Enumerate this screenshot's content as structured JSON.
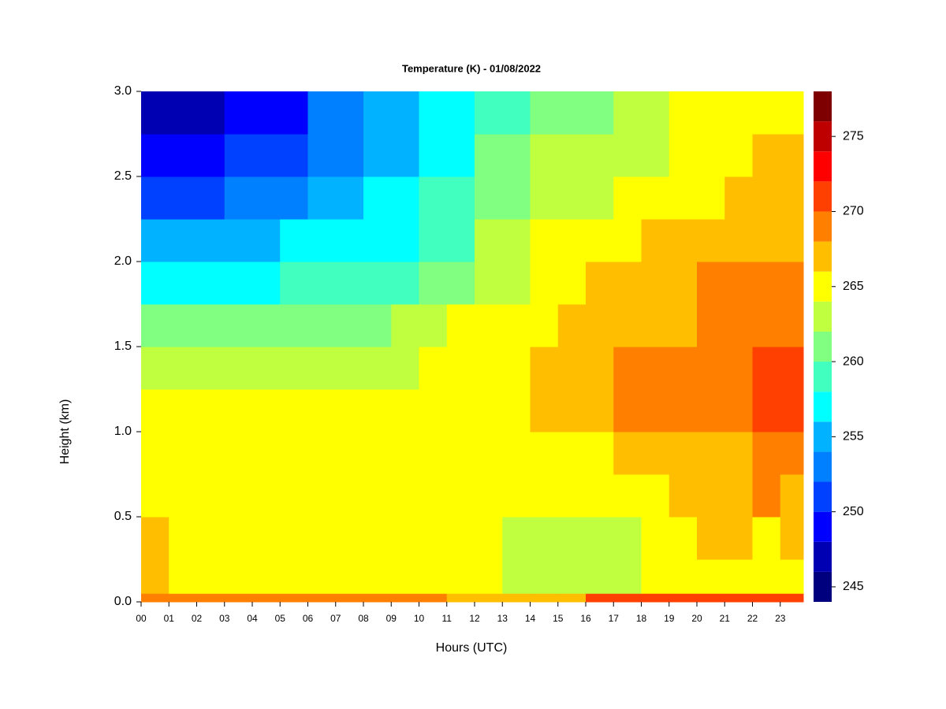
{
  "chart_data": {
    "type": "heatmap",
    "title": "Temperature (K) - 01/08/2022",
    "x_label": "Hours (UTC)",
    "y_label": "Height (km)",
    "xlim": [
      0,
      23.83
    ],
    "ylim": [
      0,
      3
    ],
    "xticks": [
      {
        "value": 0,
        "label": "00"
      },
      {
        "value": 1,
        "label": "01"
      },
      {
        "value": 2,
        "label": "02"
      },
      {
        "value": 3,
        "label": "03"
      },
      {
        "value": 4,
        "label": "04"
      },
      {
        "value": 5,
        "label": "05"
      },
      {
        "value": 6,
        "label": "06"
      },
      {
        "value": 7,
        "label": "07"
      },
      {
        "value": 8,
        "label": "08"
      },
      {
        "value": 9,
        "label": "09"
      },
      {
        "value": 10,
        "label": "10"
      },
      {
        "value": 11,
        "label": "11"
      },
      {
        "value": 12,
        "label": "12"
      },
      {
        "value": 13,
        "label": "13"
      },
      {
        "value": 14,
        "label": "14"
      },
      {
        "value": 15,
        "label": "15"
      },
      {
        "value": 16,
        "label": "16"
      },
      {
        "value": 17,
        "label": "17"
      },
      {
        "value": 18,
        "label": "18"
      },
      {
        "value": 19,
        "label": "19"
      },
      {
        "value": 20,
        "label": "20"
      },
      {
        "value": 21,
        "label": "21"
      },
      {
        "value": 22,
        "label": "22"
      },
      {
        "value": 23,
        "label": "23"
      }
    ],
    "yticks": [
      {
        "value": 0,
        "label": "0.0"
      },
      0.5,
      {
        "value": 1,
        "label": "1.0"
      },
      1.5,
      {
        "value": 2,
        "label": "2.0"
      },
      2.5,
      {
        "value": 3,
        "label": "3.0"
      }
    ],
    "x": [
      0,
      1,
      2,
      3,
      4,
      5,
      6,
      7,
      8,
      9,
      10,
      11,
      12,
      13,
      14,
      15,
      16,
      17,
      18,
      19,
      20,
      21,
      22,
      23
    ],
    "y": [
      0,
      0.05,
      0.25,
      0.5,
      0.75,
      1,
      1.25,
      1.5,
      1.75,
      2,
      2.25,
      2.5,
      2.75
    ],
    "z": [
      [
        268,
        268,
        268,
        268,
        268,
        268,
        268,
        268,
        268,
        268,
        268,
        266,
        266,
        266,
        266,
        266,
        271,
        271,
        271,
        271,
        271,
        271,
        271,
        271
      ],
      [
        266,
        265,
        265,
        265,
        265,
        265,
        265,
        265,
        265,
        265,
        265,
        265,
        265,
        262,
        262,
        262,
        262,
        262,
        264,
        265,
        265,
        265,
        265,
        265
      ],
      [
        267,
        265,
        265,
        265,
        265,
        265,
        265,
        265,
        264,
        264,
        264,
        264,
        264,
        263,
        263,
        263,
        263,
        263,
        265,
        265,
        266,
        266,
        265,
        266
      ],
      [
        265,
        265,
        265,
        265,
        265,
        264,
        264,
        264,
        264,
        264,
        264,
        264,
        265,
        264,
        264,
        264,
        264,
        265,
        265,
        267,
        267,
        267,
        268,
        267
      ],
      [
        265,
        265,
        265,
        265,
        264,
        264,
        264,
        264,
        264,
        264,
        264,
        265,
        265,
        264,
        264,
        264,
        265,
        267,
        267,
        267,
        267,
        267,
        269,
        269
      ],
      [
        264,
        264,
        264,
        264,
        264,
        264,
        264,
        264,
        264,
        264,
        264,
        265,
        265,
        265,
        266,
        266,
        267,
        268,
        268,
        268,
        269,
        269,
        270,
        270
      ],
      [
        263,
        263,
        263,
        263,
        263,
        263,
        263,
        263,
        263,
        263,
        264,
        264,
        265,
        265,
        266,
        267,
        267,
        268,
        268,
        268,
        269,
        269,
        270,
        270
      ],
      [
        260,
        260,
        260,
        260,
        260,
        261,
        261,
        261,
        261,
        262,
        262,
        264,
        264,
        265,
        265,
        266,
        267,
        267,
        267,
        267,
        268,
        268,
        269,
        269
      ],
      [
        257,
        257,
        257,
        257,
        257,
        258,
        258,
        258,
        259,
        259,
        261,
        261,
        263,
        263,
        265,
        265,
        266,
        266,
        267,
        267,
        268,
        268,
        268,
        268
      ],
      [
        254,
        254,
        254,
        254,
        254,
        256,
        256,
        256,
        257,
        257,
        259,
        259,
        262,
        262,
        264,
        264,
        265,
        265,
        266,
        266,
        267,
        267,
        267,
        267
      ],
      [
        251,
        251,
        251,
        253,
        253,
        253,
        254,
        254,
        256,
        256,
        258,
        258,
        261,
        261,
        263,
        263,
        263,
        264,
        264,
        265,
        265,
        266,
        266,
        266
      ],
      [
        249,
        249,
        249,
        251,
        251,
        251,
        253,
        253,
        255,
        255,
        257,
        257,
        260,
        260,
        262,
        262,
        262,
        263,
        263,
        265,
        265,
        265,
        266,
        266
      ],
      [
        247,
        247,
        247,
        249,
        249,
        249,
        252,
        252,
        254,
        254,
        257,
        257,
        259,
        259,
        261,
        261,
        261,
        262,
        262,
        264,
        264,
        264,
        265,
        265
      ]
    ],
    "colorbar": {
      "lim": [
        244,
        278
      ],
      "levels": [
        244,
        246,
        248,
        250,
        252,
        254,
        256,
        258,
        260,
        262,
        264,
        266,
        268,
        270,
        272,
        274,
        276,
        278
      ],
      "colors": [
        "#00007F",
        "#0000B2",
        "#0000FF",
        "#0040FF",
        "#0080FF",
        "#00B2FF",
        "#00FFFF",
        "#40FFBF",
        "#80FF80",
        "#BFFF40",
        "#FFFF00",
        "#FFBF00",
        "#FF8000",
        "#FF4000",
        "#FF0000",
        "#BF0000",
        "#7F0000"
      ],
      "ticks": [
        245,
        250,
        255,
        260,
        265,
        270,
        275
      ]
    }
  }
}
